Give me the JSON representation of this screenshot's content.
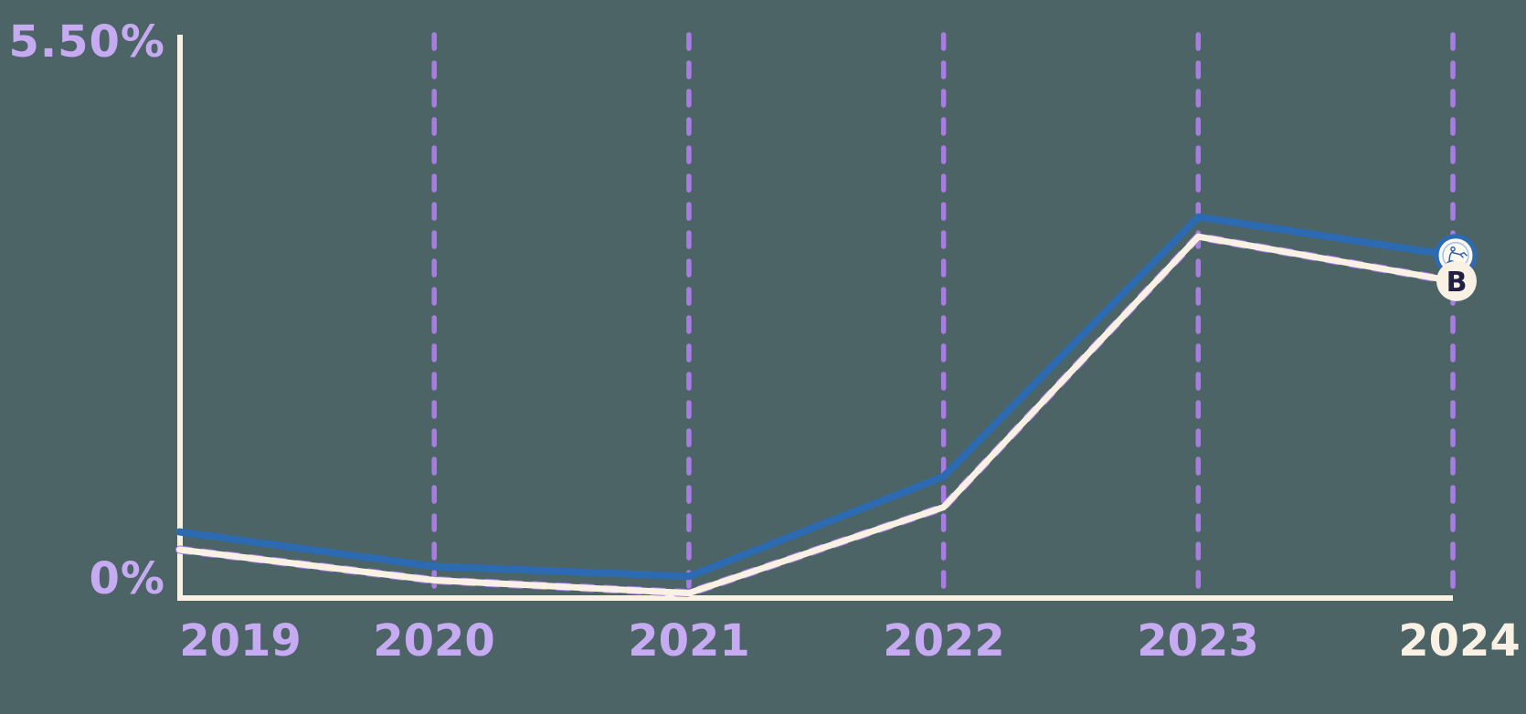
{
  "chart_data": {
    "type": "line",
    "x": [
      "2019",
      "2020",
      "2021",
      "2022",
      "2023",
      "2024"
    ],
    "ylim": [
      0,
      5.5
    ],
    "y_axis_tick_labels": [
      "5.50%",
      "0%"
    ],
    "grid": "vertical-dashed-purple",
    "legend_position": "none",
    "highlighted_x_label": "2024",
    "series": [
      {
        "name": "blue-series",
        "color": "#2c6ab1",
        "values": [
          0.67,
          0.32,
          0.22,
          1.23,
          3.86,
          3.47
        ],
        "endpoint_marker": "logo-badge"
      },
      {
        "name": "cream-series",
        "color": "#f8f1e4",
        "values": [
          0.49,
          0.18,
          0.05,
          0.92,
          3.66,
          3.21
        ],
        "endpoint_marker": "letter-b-badge",
        "shadow": "dashed-lavender-behind"
      }
    ]
  },
  "labels": {
    "y_top": "5.50%",
    "y_bottom": "0%"
  },
  "markers": {
    "b_label": "B"
  },
  "colors": {
    "background": "#4d6466",
    "label_purple": "#c6abf2",
    "grid_purple": "#a87ce3",
    "blue": "#2c6ab1",
    "cream": "#f8f1e4",
    "badge_fill": "#fdf9f0",
    "b_text": "#232046",
    "logo_blue": "#2f5ea8",
    "logo_ring": "#a6c6e4"
  }
}
